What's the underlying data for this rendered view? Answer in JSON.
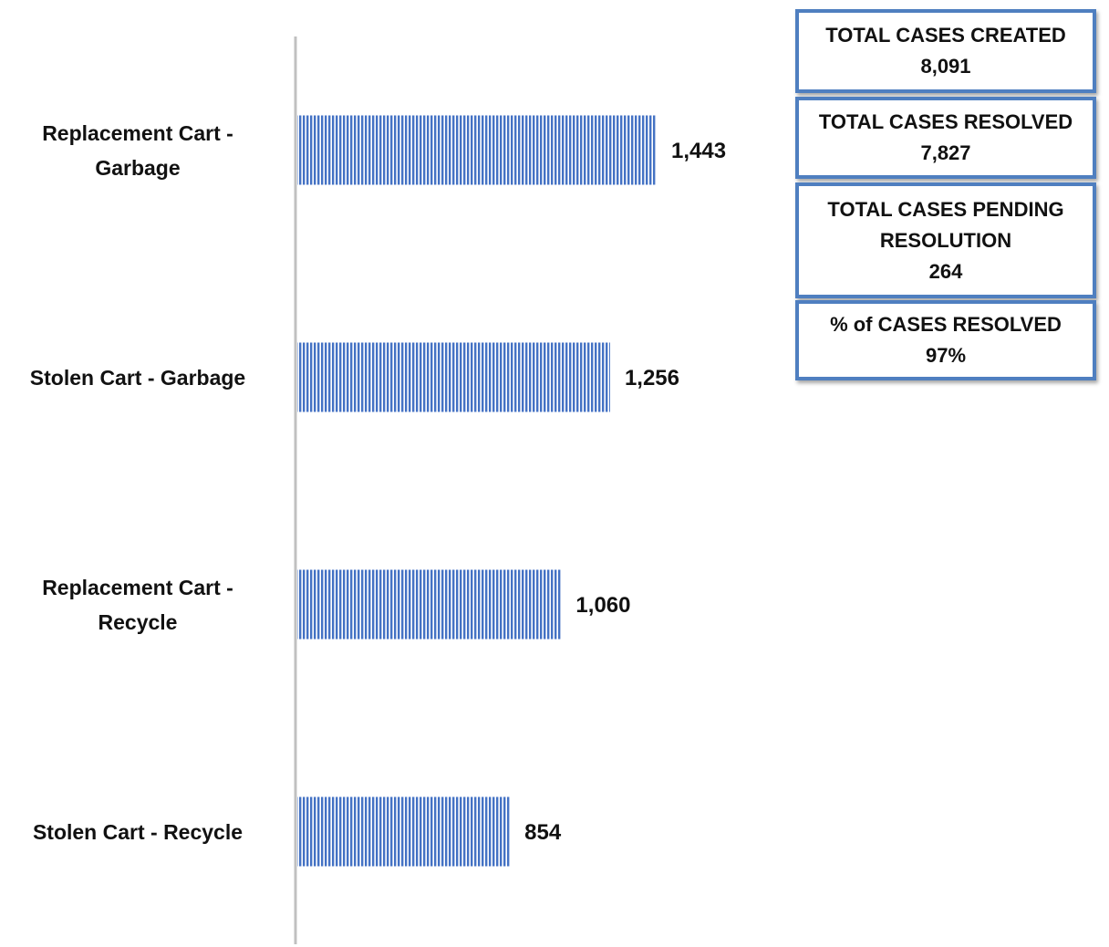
{
  "chart_data": {
    "type": "bar",
    "categories": [
      "Replacement Cart - Garbage",
      "Stolen Cart - Garbage",
      "Replacement Cart - Recycle",
      "Stolen Cart - Recycle"
    ],
    "values": [
      1443,
      1256,
      1060,
      854
    ],
    "value_labels": [
      "1,443",
      "1,256",
      "1,060",
      "854"
    ],
    "color": "#4472c4"
  },
  "stats": [
    {
      "label": "TOTAL CASES CREATED",
      "value": "8,091"
    },
    {
      "label": "TOTAL CASES RESOLVED",
      "value": "7,827"
    },
    {
      "label": "TOTAL CASES PENDING RESOLUTION",
      "value": "264"
    },
    {
      "label": "% of CASES RESOLVED",
      "value": "97%"
    }
  ]
}
